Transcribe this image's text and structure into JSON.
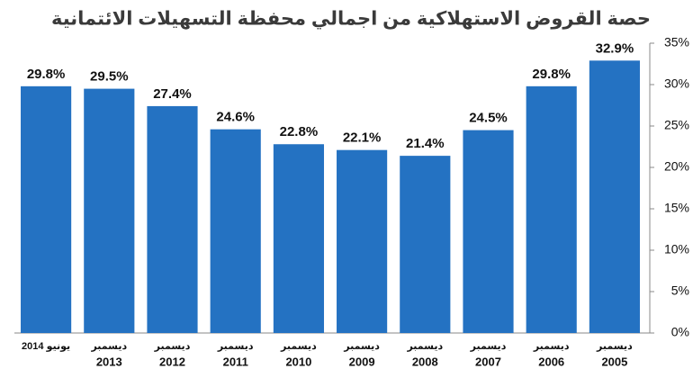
{
  "chart_data": {
    "type": "bar",
    "title": "حصة القروض الاستهلاكية من اجمالي محفظة التسهيلات الائتمانية",
    "categories": [
      [
        "يونيو 2014"
      ],
      [
        "ديسمبر",
        "2013"
      ],
      [
        "ديسمبر",
        "2012"
      ],
      [
        "ديسمبر",
        "2011"
      ],
      [
        "ديسمبر",
        "2010"
      ],
      [
        "ديسمبر",
        "2009"
      ],
      [
        "ديسمبر",
        "2008"
      ],
      [
        "ديسمبر",
        "2007"
      ],
      [
        "ديسمبر",
        "2006"
      ],
      [
        "ديسمبر",
        "2005"
      ]
    ],
    "values": [
      29.8,
      29.5,
      27.4,
      24.6,
      22.8,
      22.1,
      21.4,
      24.5,
      29.8,
      32.9
    ],
    "value_labels": [
      "29.8%",
      "29.5%",
      "27.4%",
      "24.6%",
      "22.8%",
      "22.1%",
      "21.4%",
      "24.5%",
      "29.8%",
      "32.9%"
    ],
    "color": "#2472c2",
    "ylim": [
      0,
      35
    ],
    "yticks": [
      {
        "value": 0,
        "label": "0%"
      },
      {
        "value": 5,
        "label": "5%"
      },
      {
        "value": 10,
        "label": "10%"
      },
      {
        "value": 15,
        "label": "15%"
      },
      {
        "value": 20,
        "label": "20%"
      },
      {
        "value": 25,
        "label": "25%"
      },
      {
        "value": 30,
        "label": "30%"
      },
      {
        "value": 35,
        "label": "35%"
      }
    ],
    "y_axis_side": "right"
  }
}
